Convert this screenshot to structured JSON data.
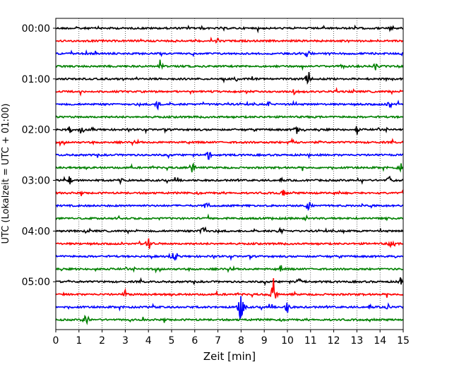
{
  "chart_data": {
    "type": "line",
    "subtype": "helicorder",
    "title": "",
    "xlabel": "Zeit  [min]",
    "ylabel": "UTC (Lokalzeit = UTC + 01:00)",
    "xlim": [
      0,
      15
    ],
    "x_ticks": [
      0,
      1,
      2,
      3,
      4,
      5,
      6,
      7,
      8,
      9,
      10,
      11,
      12,
      13,
      14,
      15
    ],
    "grid": "vertical dotted at each minute",
    "trace_interval_minutes": 15,
    "trace_count": 24,
    "trace_colors": [
      "#000000",
      "#ff0000",
      "#0000ff",
      "#008000"
    ],
    "y_ticks": [
      {
        "label": "00:00",
        "trace_index": 0
      },
      {
        "label": "01:00",
        "trace_index": 4
      },
      {
        "label": "02:00",
        "trace_index": 8
      },
      {
        "label": "03:00",
        "trace_index": 12
      },
      {
        "label": "04:00",
        "trace_index": 16
      },
      {
        "label": "05:00",
        "trace_index": 20
      }
    ],
    "events": [
      {
        "trace": 0,
        "t": 14.5,
        "amp": 0.5
      },
      {
        "trace": 0,
        "t": 6.3,
        "amp": 0.3
      },
      {
        "trace": 1,
        "t": 7.0,
        "amp": 0.4
      },
      {
        "trace": 2,
        "t": 10.9,
        "amp": 0.6
      },
      {
        "trace": 3,
        "t": 4.5,
        "amp": 0.7
      },
      {
        "trace": 3,
        "t": 13.8,
        "amp": 0.4
      },
      {
        "trace": 4,
        "t": 10.9,
        "amp": 0.9
      },
      {
        "trace": 4,
        "t": 7.8,
        "amp": 0.3
      },
      {
        "trace": 5,
        "t": 10.3,
        "amp": 0.5
      },
      {
        "trace": 6,
        "t": 4.4,
        "amp": 0.7
      },
      {
        "trace": 6,
        "t": 9.2,
        "amp": 0.4
      },
      {
        "trace": 6,
        "t": 14.4,
        "amp": 0.5
      },
      {
        "trace": 8,
        "t": 0.6,
        "amp": 0.5
      },
      {
        "trace": 8,
        "t": 1.1,
        "amp": 0.5
      },
      {
        "trace": 8,
        "t": 10.4,
        "amp": 0.6
      },
      {
        "trace": 8,
        "t": 13.0,
        "amp": 0.5
      },
      {
        "trace": 9,
        "t": 10.2,
        "amp": 0.4
      },
      {
        "trace": 10,
        "t": 6.6,
        "amp": 0.6
      },
      {
        "trace": 11,
        "t": 5.9,
        "amp": 0.8
      },
      {
        "trace": 11,
        "t": 14.9,
        "amp": 0.4
      },
      {
        "trace": 12,
        "t": 0.6,
        "amp": 0.5
      },
      {
        "trace": 12,
        "t": 2.8,
        "amp": 0.5
      },
      {
        "trace": 12,
        "t": 14.4,
        "amp": 0.5
      },
      {
        "trace": 13,
        "t": 9.8,
        "amp": 0.5
      },
      {
        "trace": 14,
        "t": 6.5,
        "amp": 0.6
      },
      {
        "trace": 14,
        "t": 10.9,
        "amp": 0.4
      },
      {
        "trace": 16,
        "t": 6.4,
        "amp": 0.9
      },
      {
        "trace": 16,
        "t": 9.7,
        "amp": 0.5
      },
      {
        "trace": 17,
        "t": 4.0,
        "amp": 0.8
      },
      {
        "trace": 17,
        "t": 14.5,
        "amp": 0.7
      },
      {
        "trace": 18,
        "t": 5.1,
        "amp": 0.6
      },
      {
        "trace": 19,
        "t": 9.7,
        "amp": 0.5
      },
      {
        "trace": 20,
        "t": 14.9,
        "amp": 0.6
      },
      {
        "trace": 20,
        "t": 10.5,
        "amp": 0.5
      },
      {
        "trace": 21,
        "t": 9.4,
        "amp": 1.8
      },
      {
        "trace": 21,
        "t": 3.0,
        "amp": 0.5
      },
      {
        "trace": 22,
        "t": 8.0,
        "amp": 2.0
      },
      {
        "trace": 22,
        "t": 10.0,
        "amp": 0.7
      },
      {
        "trace": 22,
        "t": 14.4,
        "amp": 0.5
      },
      {
        "trace": 23,
        "t": 1.3,
        "amp": 0.7
      }
    ]
  }
}
